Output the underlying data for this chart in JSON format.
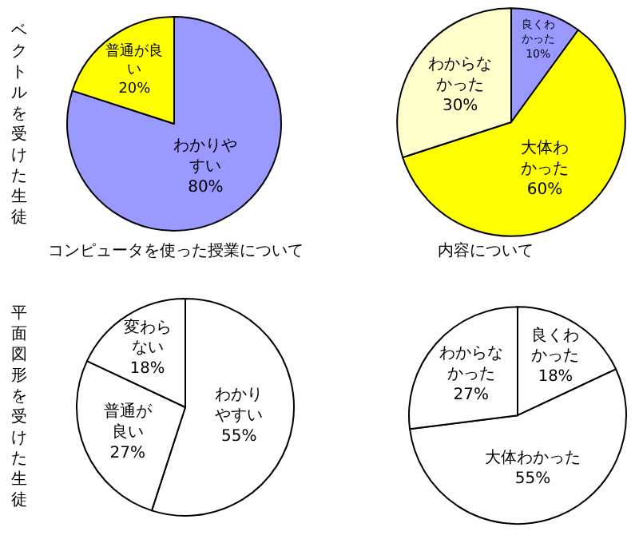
{
  "chart_data": [
    {
      "type": "pie",
      "title": "コンピュータを使った授業について",
      "annotations": [
        "ベクトルを受けた生徒"
      ],
      "categories": [
        "わかりやすい",
        "普通が良い"
      ],
      "values": [
        80,
        20
      ],
      "value_labels": [
        "80%",
        "20%"
      ],
      "colors": [
        "#9999ff",
        "#ffff00"
      ]
    },
    {
      "type": "pie",
      "title": "内容について",
      "categories": [
        "良くわかった",
        "大体わかった",
        "わからなかった"
      ],
      "values": [
        10,
        60,
        30
      ],
      "value_labels": [
        "10%",
        "60%",
        "30%"
      ],
      "colors": [
        "#9999ff",
        "#ffff00",
        "#ffffcc"
      ]
    },
    {
      "type": "pie",
      "annotations": [
        "平面図形を受けた生徒"
      ],
      "categories": [
        "わかりやすい",
        "普通が良い",
        "変わらない"
      ],
      "values": [
        55,
        27,
        18
      ],
      "value_labels": [
        "55%",
        "27%",
        "18%"
      ],
      "colors": [
        "#ffffff",
        "#ffffff",
        "#ffffff"
      ]
    },
    {
      "type": "pie",
      "categories": [
        "良くわかった",
        "大体わかった",
        "わからなかった"
      ],
      "values": [
        18,
        55,
        27
      ],
      "value_labels": [
        "18%",
        "55%",
        "27%"
      ],
      "colors": [
        "#ffffff",
        "#ffffff",
        "#ffffff"
      ]
    }
  ]
}
